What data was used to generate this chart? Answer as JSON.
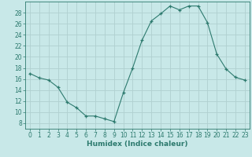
{
  "x": [
    0,
    1,
    2,
    3,
    4,
    5,
    6,
    7,
    8,
    9,
    10,
    11,
    12,
    13,
    14,
    15,
    16,
    17,
    18,
    19,
    20,
    21,
    22,
    23
  ],
  "y": [
    17,
    16.2,
    15.8,
    14.5,
    11.8,
    10.8,
    9.3,
    9.3,
    8.8,
    8.3,
    13.5,
    18,
    23,
    26.5,
    27.8,
    29.2,
    28.5,
    29.2,
    29.2,
    26.2,
    20.5,
    17.8,
    16.3,
    15.8
  ],
  "line_color": "#2d7a6e",
  "marker_color": "#2d7a6e",
  "bg_color": "#c8e8e8",
  "grid_color": "#b0d0d0",
  "xlabel": "Humidex (Indice chaleur)",
  "xlim": [
    -0.5,
    23.5
  ],
  "ylim": [
    7,
    30
  ],
  "yticks": [
    8,
    10,
    12,
    14,
    16,
    18,
    20,
    22,
    24,
    26,
    28
  ],
  "xticks": [
    0,
    1,
    2,
    3,
    4,
    5,
    6,
    7,
    8,
    9,
    10,
    11,
    12,
    13,
    14,
    15,
    16,
    17,
    18,
    19,
    20,
    21,
    22,
    23
  ],
  "label_fontsize": 6.5,
  "tick_fontsize": 5.5
}
